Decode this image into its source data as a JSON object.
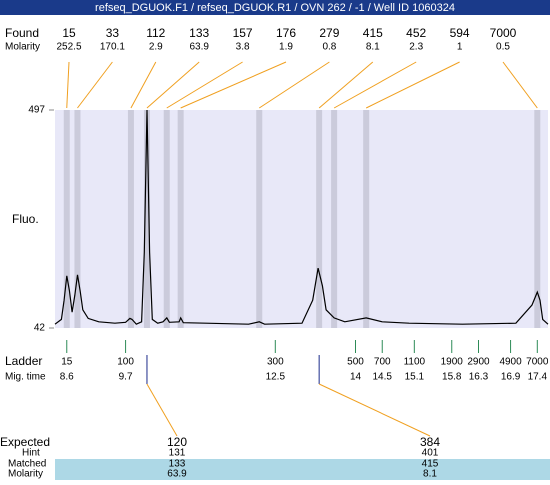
{
  "chart_data": {
    "type": "electropherogram",
    "title": "refseq_DGUOK.F1 / refseq_DGUOK.R1 / OVN 262 / -1 / Well ID 1060324",
    "y_label": "Fluo.",
    "ylim": [
      42,
      497
    ],
    "yticks": [
      42,
      497
    ],
    "xlim": [
      8.38,
      17.6
    ],
    "trace": {
      "color": "#000000",
      "x": [
        8.38,
        8.5,
        8.55,
        8.6,
        8.65,
        8.7,
        8.75,
        8.8,
        8.85,
        8.9,
        9.0,
        9.2,
        9.5,
        9.7,
        9.78,
        9.82,
        9.9,
        10.0,
        10.05,
        10.1,
        10.15,
        10.2,
        10.3,
        10.4,
        10.47,
        10.52,
        10.7,
        10.73,
        10.78,
        11.2,
        12.0,
        12.2,
        12.3,
        13.0,
        13.2,
        13.3,
        13.38,
        13.45,
        13.6,
        13.8,
        14.2,
        14.5,
        15,
        16,
        17.0,
        17.3,
        17.4,
        17.45,
        17.5,
        17.6
      ],
      "values": [
        50,
        60,
        100,
        151,
        120,
        75,
        110,
        153,
        120,
        80,
        62,
        55,
        52,
        54,
        62,
        60,
        50,
        55,
        200,
        497,
        200,
        60,
        52,
        55,
        63,
        54,
        55,
        63,
        53,
        52,
        50,
        55,
        50,
        52,
        100,
        167,
        130,
        80,
        63,
        55,
        63,
        55,
        52,
        50,
        52,
        90,
        117,
        100,
        60,
        50
      ]
    },
    "found": {
      "label": "Found",
      "molarity_label": "Molarity",
      "color": "#cbcbdb",
      "sizes": [
        15,
        33,
        112,
        133,
        157,
        176,
        279,
        415,
        452,
        594,
        7000
      ],
      "molarity": [
        252.5,
        170.1,
        2.9,
        63.9,
        3.8,
        1.9,
        0.8,
        8.1,
        2.3,
        1,
        0.5
      ],
      "times": [
        8.6,
        8.8,
        9.8,
        10.1,
        10.47,
        10.73,
        12.2,
        13.32,
        13.6,
        14.2,
        17.4
      ]
    },
    "ladder": {
      "label": "Ladder",
      "time_label": "Mig. time",
      "color": "#2e8b57",
      "sizes": [
        15,
        100,
        300,
        500,
        700,
        1100,
        1900,
        2900,
        4900,
        7000
      ],
      "times": [
        8.6,
        9.7,
        12.5,
        14,
        14.5,
        15.1,
        15.8,
        16.3,
        16.9,
        17.4
      ]
    },
    "expected": {
      "label": "Expected",
      "hint_label": "Hint",
      "matched_label": "Matched",
      "molarity_label": "Molarity",
      "sizes": [
        120,
        384
      ],
      "hint": [
        131,
        401
      ],
      "matched": [
        133,
        415
      ],
      "molarity": [
        63.9,
        8.1
      ]
    }
  }
}
